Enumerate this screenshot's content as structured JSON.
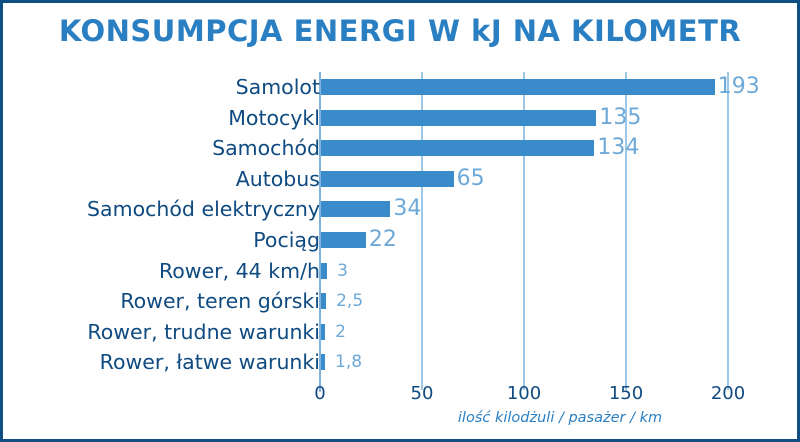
{
  "chart_data": {
    "type": "bar",
    "orientation": "horizontal",
    "title": "KONSUMPCJA ENERGI W kJ NA KILOMETR",
    "xlabel": "ilość kilodżuli / pasażer / km",
    "ylabel": "",
    "categories": [
      "Samolot",
      "Motocykl",
      "Samochód",
      "Autobus",
      "Samochód elektryczny",
      "Pociąg",
      "Rower, 44 km/h",
      "Rower, teren górski",
      "Rower, trudne warunki",
      "Rower, łatwe warunki"
    ],
    "values": [
      193,
      135,
      134,
      65,
      34,
      22,
      3,
      2.5,
      2,
      1.8
    ],
    "value_labels": [
      "193",
      "135",
      "134",
      "65",
      "34",
      "22",
      "3",
      "2,5",
      "2",
      "1,8"
    ],
    "xlim": [
      0,
      200
    ],
    "xticks": [
      "0",
      "50",
      "100",
      "150",
      "200"
    ],
    "grid": true,
    "legend": null,
    "colors": {
      "bar": "#3a8bc9",
      "value_label": "#6ea9d8",
      "title": "#2a7fc2",
      "category_label": "#0f4a80",
      "gridline": "#9cc7e6",
      "border": "#0f4f86"
    }
  }
}
